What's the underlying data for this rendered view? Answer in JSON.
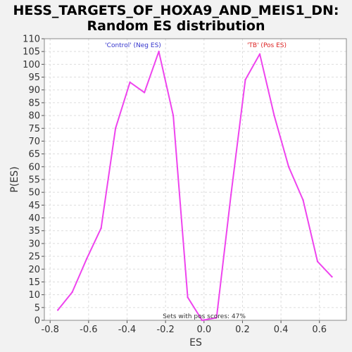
{
  "chart_data": {
    "type": "line",
    "title_lines": [
      "HESS_TARGETS_OF_HOXA9_AND_MEIS1_DN:",
      "Random ES distribution"
    ],
    "xlabel": "ES",
    "ylabel": "P(ES)",
    "xlim": [
      -0.83,
      0.74
    ],
    "ylim": [
      0,
      110
    ],
    "xticks": [
      -0.8,
      -0.6,
      -0.4,
      -0.2,
      0.0,
      0.2,
      0.4,
      0.6
    ],
    "xtick_labels": [
      "-0.8",
      "-0.6",
      "-0.4",
      "-0.2",
      "0.0",
      "0.2",
      "0.4",
      "0.6"
    ],
    "yticks": [
      0,
      5,
      10,
      15,
      20,
      25,
      30,
      35,
      40,
      45,
      50,
      55,
      60,
      65,
      70,
      75,
      80,
      85,
      90,
      95,
      100,
      105,
      110
    ],
    "grid": true,
    "series": [
      {
        "color": "#ee44ee",
        "x": [
          -0.76,
          -0.685,
          -0.61,
          -0.535,
          -0.46,
          -0.385,
          -0.31,
          -0.235,
          -0.16,
          -0.085,
          -0.01,
          0.065,
          0.14,
          0.215,
          0.29,
          0.365,
          0.44,
          0.515,
          0.59,
          0.665
        ],
        "y": [
          4,
          11,
          24,
          36,
          75,
          93,
          89,
          105,
          80,
          9,
          0,
          1,
          49,
          94,
          104,
          80,
          60,
          47,
          23,
          17
        ]
      }
    ],
    "annotations": {
      "neg_label": "'Control' (Neg ES)",
      "pos_label": "'TB' (Pos ES)",
      "footer": "Sets with pos scores: 47%"
    },
    "colors": {
      "neg_label": "#3333cc",
      "pos_label": "#dd2222",
      "line": "#ee44ee"
    }
  }
}
